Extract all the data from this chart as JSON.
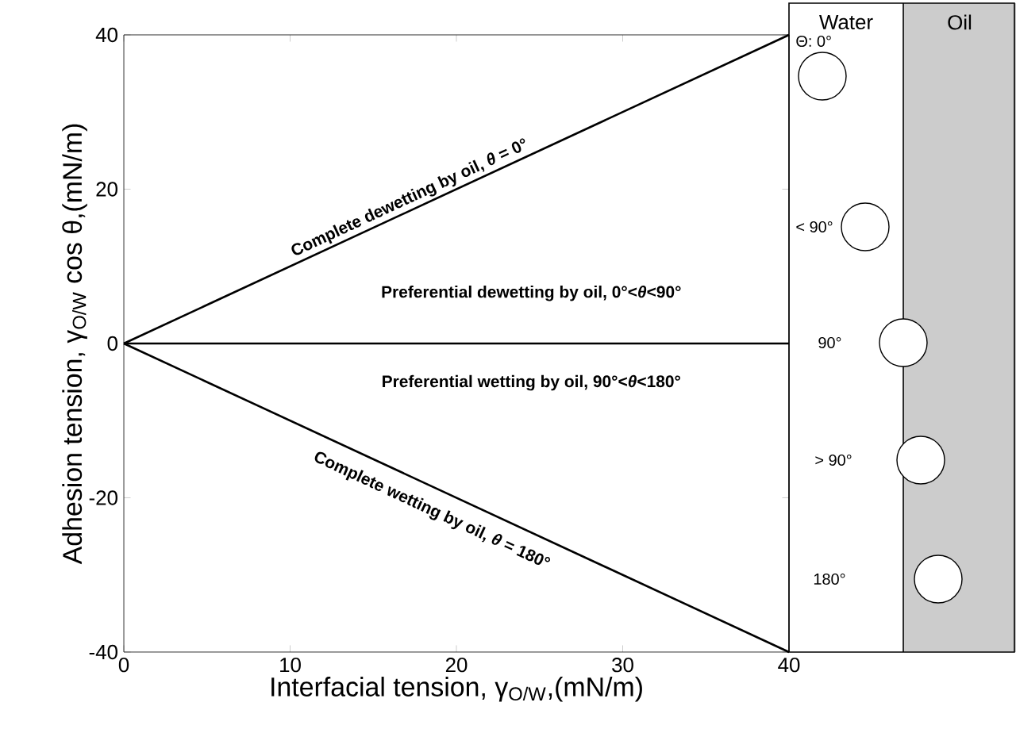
{
  "chart_data": [
    {
      "type": "line",
      "xlabel": "Interfacial tension, γ$_{O/W}$,(mN/m)",
      "ylabel": "Adhesion tension, γ$_{O/W}$ cos θ,(mN/m)",
      "xlim": [
        0,
        40
      ],
      "ylim": [
        -40,
        40
      ],
      "xticks": [
        0,
        10,
        20,
        30,
        40
      ],
      "yticks": [
        -40,
        -20,
        0,
        20,
        40
      ],
      "x": [
        0,
        40
      ],
      "marker": "none",
      "line_style": "solid",
      "series": [
        {
          "color": "#000000",
          "values": [
            0,
            40
          ]
        },
        {
          "color": "#000000",
          "values": [
            0,
            0
          ]
        },
        {
          "color": "#000000",
          "values": [
            0,
            -40
          ]
        }
      ],
      "annotations": [
        "Complete dewetting by oil, *θ* = 0°",
        "Preferential dewetting by oil, 0°<*θ*<90°",
        "Preferential wetting by oil, 90°<*θ*<180°",
        "Complete wetting by oil, *θ* = 180°"
      ]
    },
    {
      "type": "other",
      "annotations": [
        "Water",
        "Oil",
        "Θ: 0°",
        "< 90°",
        "90°",
        "> 90°",
        "180°"
      ]
    }
  ]
}
